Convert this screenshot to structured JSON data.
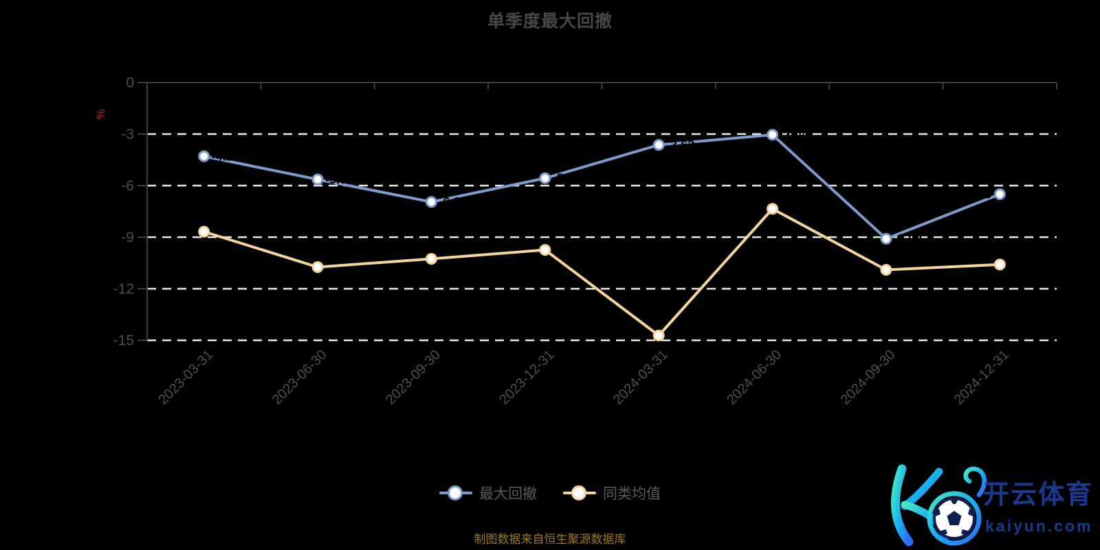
{
  "page": {
    "background": "#000000"
  },
  "chart_data": {
    "type": "line",
    "title": "单季度最大回撤",
    "unit_label": "%",
    "unit_label_color": "#cc1f1f",
    "categories": [
      "2023-03-31",
      "2023-06-30",
      "2023-09-30",
      "2023-12-31",
      "2024-03-31",
      "2024-06-30",
      "2024-09-30",
      "2024-12-31"
    ],
    "series": [
      {
        "name": "最大回撤",
        "color": "#7e9bcd",
        "marker_fill": "#ffffff",
        "values": [
          -4.29,
          -5.64,
          -6.95,
          -5.57,
          -3.63,
          -3.04,
          -9.09,
          -6.5
        ],
        "point_labels": true,
        "point_label_color": "#000000"
      },
      {
        "name": "同类均值",
        "color": "#f6d59b",
        "marker_fill": "#ffffff",
        "values": [
          -8.68,
          -10.74,
          -10.26,
          -9.74,
          -14.72,
          -7.35,
          -10.9,
          -10.59
        ],
        "point_labels": false,
        "point_label_color": "#000000"
      }
    ],
    "ylim": [
      -15,
      0
    ],
    "yticks": [
      0,
      -3,
      -6,
      -9,
      -12,
      -15
    ],
    "grid": "dashed",
    "grid_color": "#ececec",
    "axis_color": "#3e3e3e",
    "tick_label_color": "#4f4f4f",
    "legend_position": "bottom-center"
  },
  "legend": {
    "items": [
      {
        "label": "最大回撤"
      },
      {
        "label": "同类均值"
      }
    ],
    "text_color": "#5a5a5a"
  },
  "footer": {
    "text": "制图数据来自恒生聚源数据库",
    "color": "#997a1f"
  },
  "watermark": {
    "brand": "开云体育",
    "domain": "kaiyun.com",
    "text_color": "#1a3a8f",
    "logo_gradient": [
      "#43e8c8",
      "#18b0f0",
      "#2a6cf5"
    ]
  }
}
